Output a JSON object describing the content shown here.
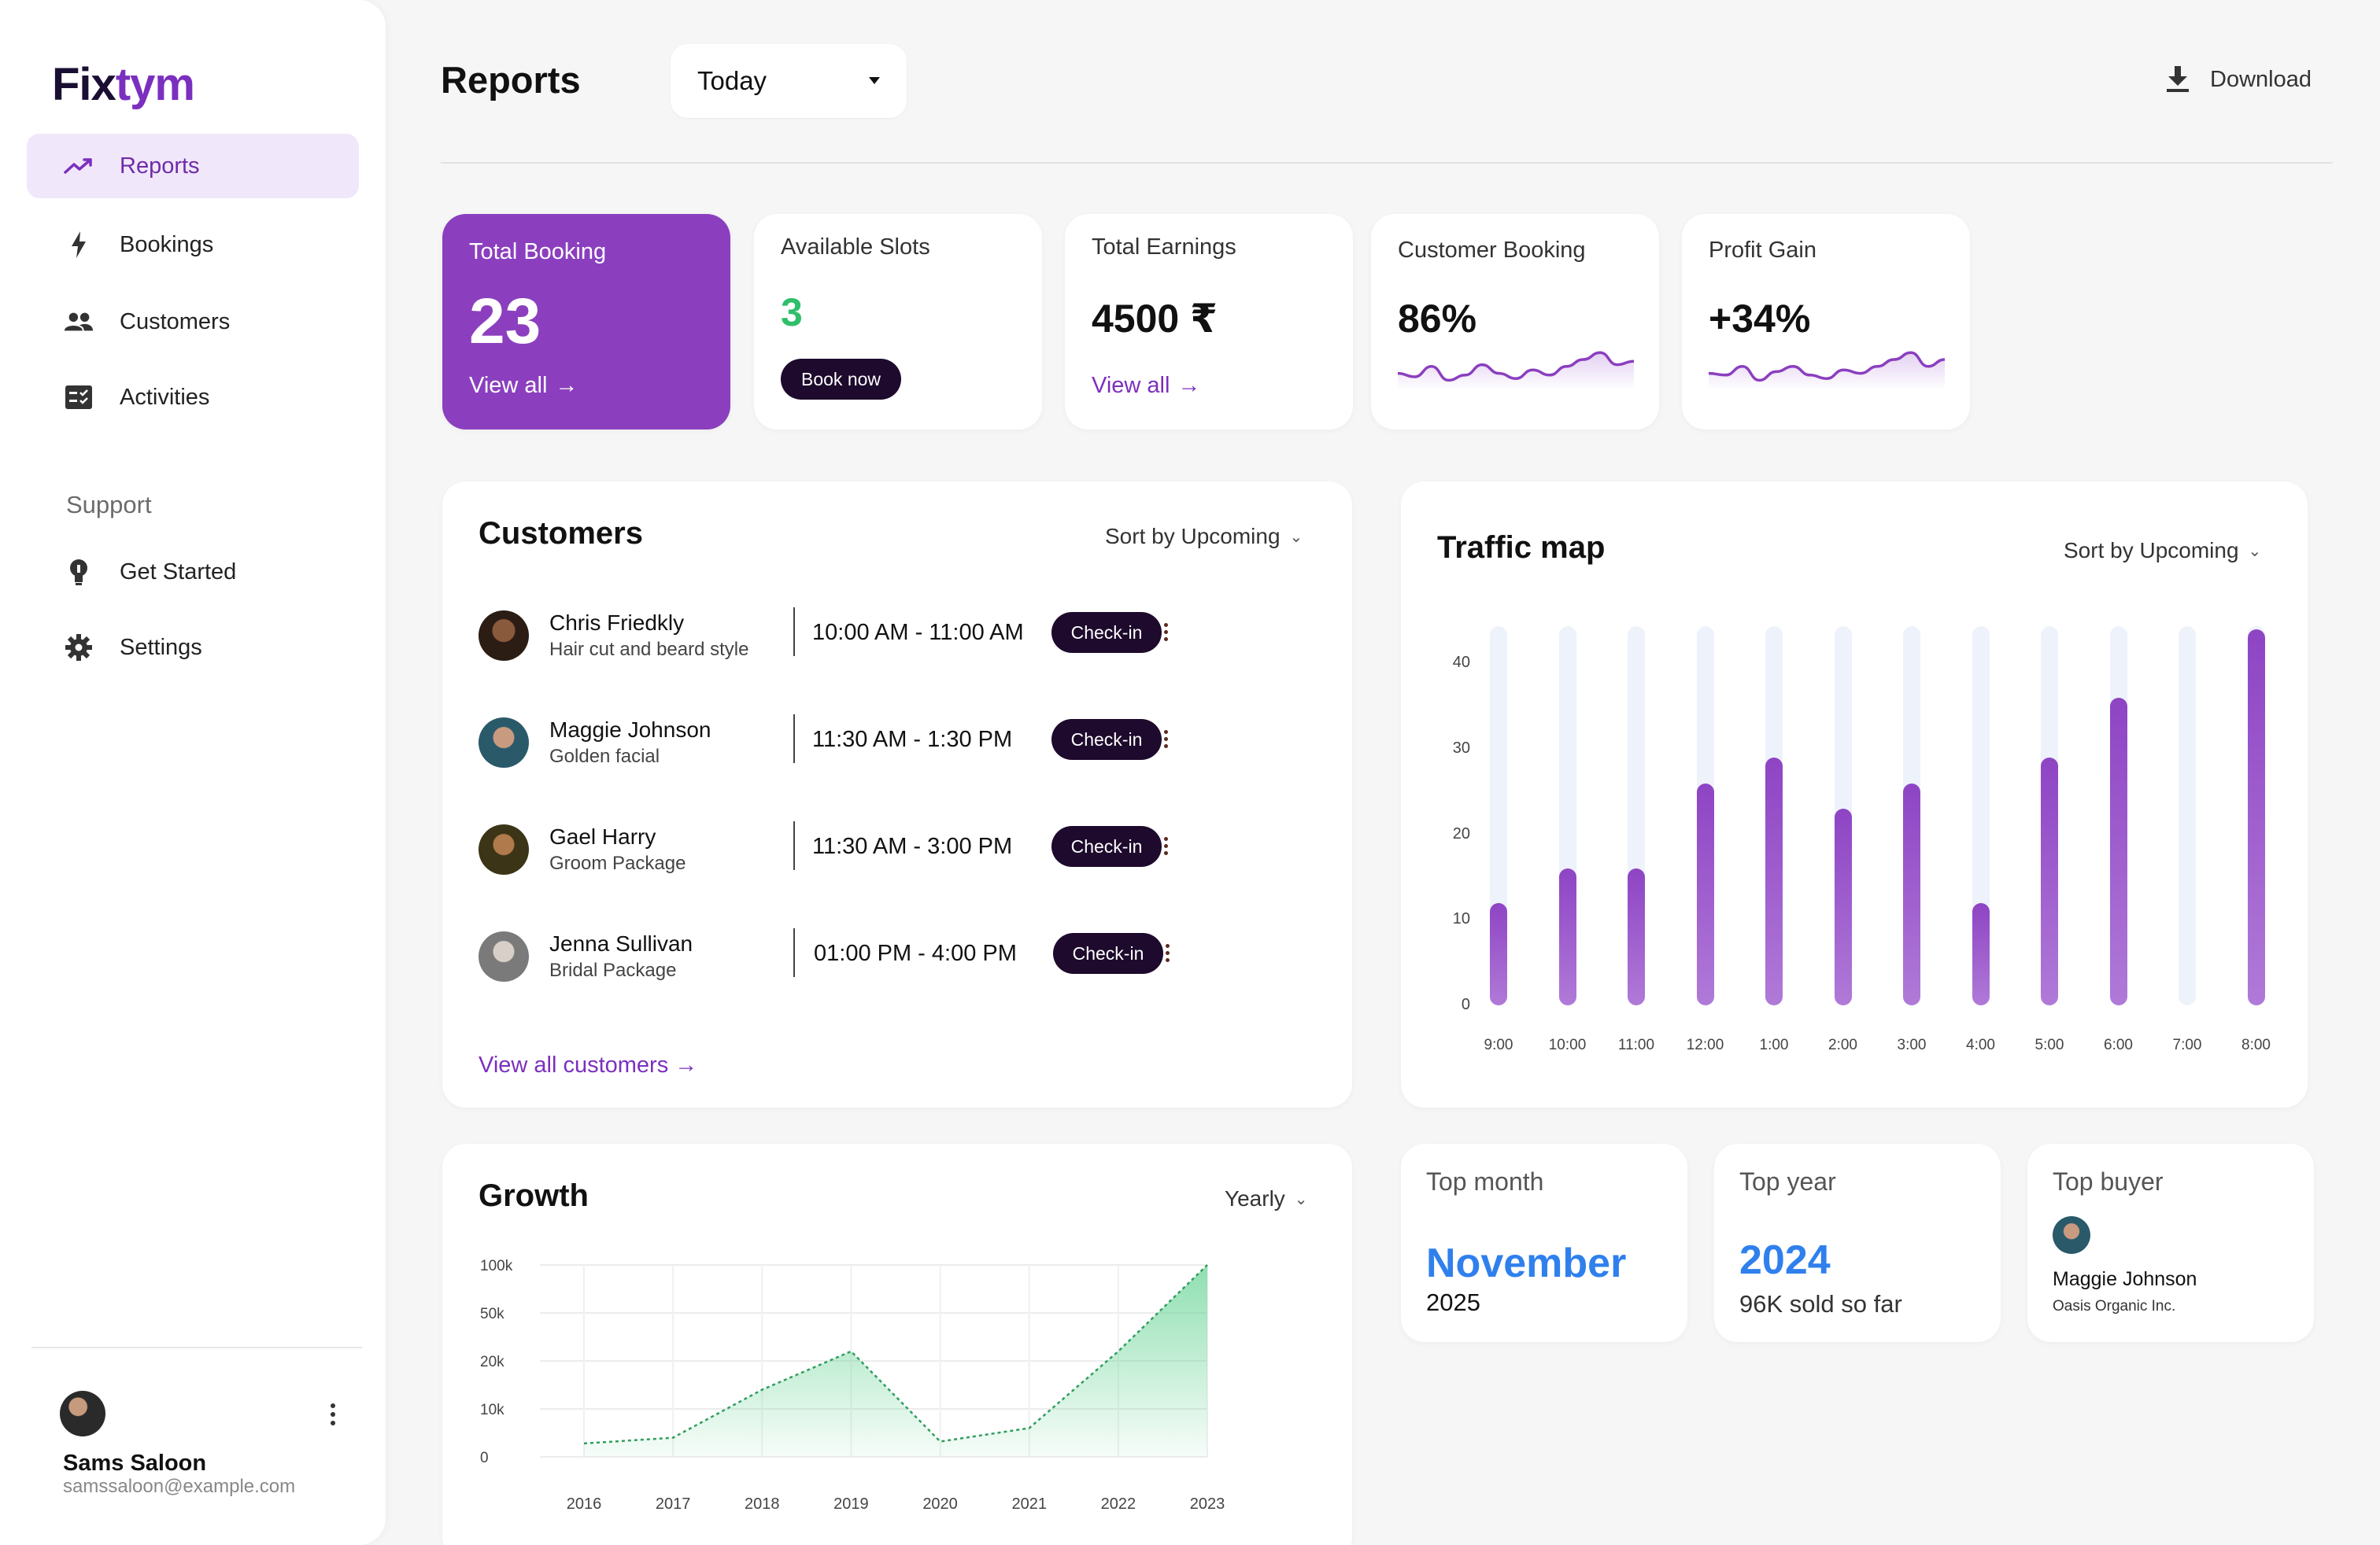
{
  "brand": {
    "logo_part1": "Fix",
    "logo_part2": "tym"
  },
  "sidebar": {
    "nav": [
      {
        "label": "Reports",
        "icon": "trending-up-icon",
        "active": true
      },
      {
        "label": "Bookings",
        "icon": "bolt-icon"
      },
      {
        "label": "Customers",
        "icon": "people-icon"
      },
      {
        "label": "Activities",
        "icon": "checklist-icon"
      }
    ],
    "support_title": "Support",
    "support": [
      {
        "label": "Get Started",
        "icon": "lightbulb-icon"
      },
      {
        "label": "Settings",
        "icon": "gear-icon"
      }
    ],
    "user": {
      "name": "Sams Saloon",
      "email": "samssaloon@example.com"
    }
  },
  "header": {
    "title": "Reports",
    "date_filter": "Today",
    "download_label": "Download"
  },
  "stats": {
    "total_booking": {
      "label": "Total Booking",
      "value": "23",
      "link": "View all"
    },
    "available_slots": {
      "label": "Available Slots",
      "value": "3",
      "button": "Book now"
    },
    "total_earnings": {
      "label": "Total Earnings",
      "value": "4500 ₹",
      "link": "View all"
    },
    "customer_booking": {
      "label": "Customer Booking",
      "value": "86%"
    },
    "profit_gain": {
      "label": "Profit Gain",
      "value": "+34%"
    }
  },
  "customers": {
    "title": "Customers",
    "sort_label": "Sort by",
    "sort_value": "Upcoming",
    "checkin_label": "Check-in",
    "rows": [
      {
        "name": "Chris Friedkly",
        "service": "Hair cut and beard style",
        "time": "10:00 AM - 11:00 AM"
      },
      {
        "name": "Maggie Johnson",
        "service": "Golden facial",
        "time": "11:30 AM - 1:30 PM"
      },
      {
        "name": "Gael Harry",
        "service": "Groom Package",
        "time": "11:30 AM - 3:00 PM"
      },
      {
        "name": "Jenna Sullivan",
        "service": "Bridal Package",
        "time": "01:00 PM - 4:00 PM"
      }
    ],
    "view_all": "View all customers"
  },
  "traffic_map": {
    "title": "Traffic map",
    "sort_label": "Sort by",
    "sort_value": "Upcoming"
  },
  "growth": {
    "title": "Growth",
    "period": "Yearly"
  },
  "top_month": {
    "label": "Top month",
    "value": "November",
    "sub": "2025"
  },
  "top_year": {
    "label": "Top year",
    "value": "2024",
    "sub": "96K sold so far"
  },
  "top_buyer": {
    "label": "Top buyer",
    "name": "Maggie Johnson",
    "company": "Oasis Organic Inc."
  },
  "colors": {
    "brand_purple": "#8b3fbf",
    "dark": "#1d0a2c",
    "accent_blue": "#2f80ed",
    "green": "#3cc37a"
  },
  "chart_data": [
    {
      "type": "bar",
      "title": "Traffic map",
      "categories": [
        "9:00",
        "10:00",
        "11:00",
        "12:00",
        "1:00",
        "2:00",
        "3:00",
        "4:00",
        "5:00",
        "6:00",
        "7:00",
        "8:00"
      ],
      "values": [
        12,
        16,
        16,
        26,
        29,
        23,
        26,
        12,
        29,
        36,
        0,
        44
      ],
      "yticks": [
        "0",
        "10",
        "20",
        "30",
        "40"
      ],
      "ylim": [
        0,
        44
      ]
    },
    {
      "type": "area",
      "title": "Growth",
      "categories": [
        "2016",
        "2017",
        "2018",
        "2019",
        "2020",
        "2021",
        "2022",
        "2023"
      ],
      "values": [
        7,
        10,
        35,
        55,
        8,
        15,
        55,
        100
      ],
      "yticks": [
        "100k",
        "50k",
        "20k",
        "10k",
        "0"
      ]
    },
    {
      "type": "line",
      "title": "Customer Booking",
      "values": [
        0.35,
        0.25,
        0.55,
        0.15,
        0.3,
        0.6,
        0.35,
        0.2,
        0.45,
        0.3,
        0.55,
        0.75,
        0.95,
        0.6,
        0.7
      ]
    },
    {
      "type": "line",
      "title": "Profit Gain",
      "values": [
        0.35,
        0.3,
        0.55,
        0.15,
        0.4,
        0.55,
        0.3,
        0.2,
        0.45,
        0.35,
        0.55,
        0.75,
        0.95,
        0.55,
        0.75
      ]
    }
  ]
}
